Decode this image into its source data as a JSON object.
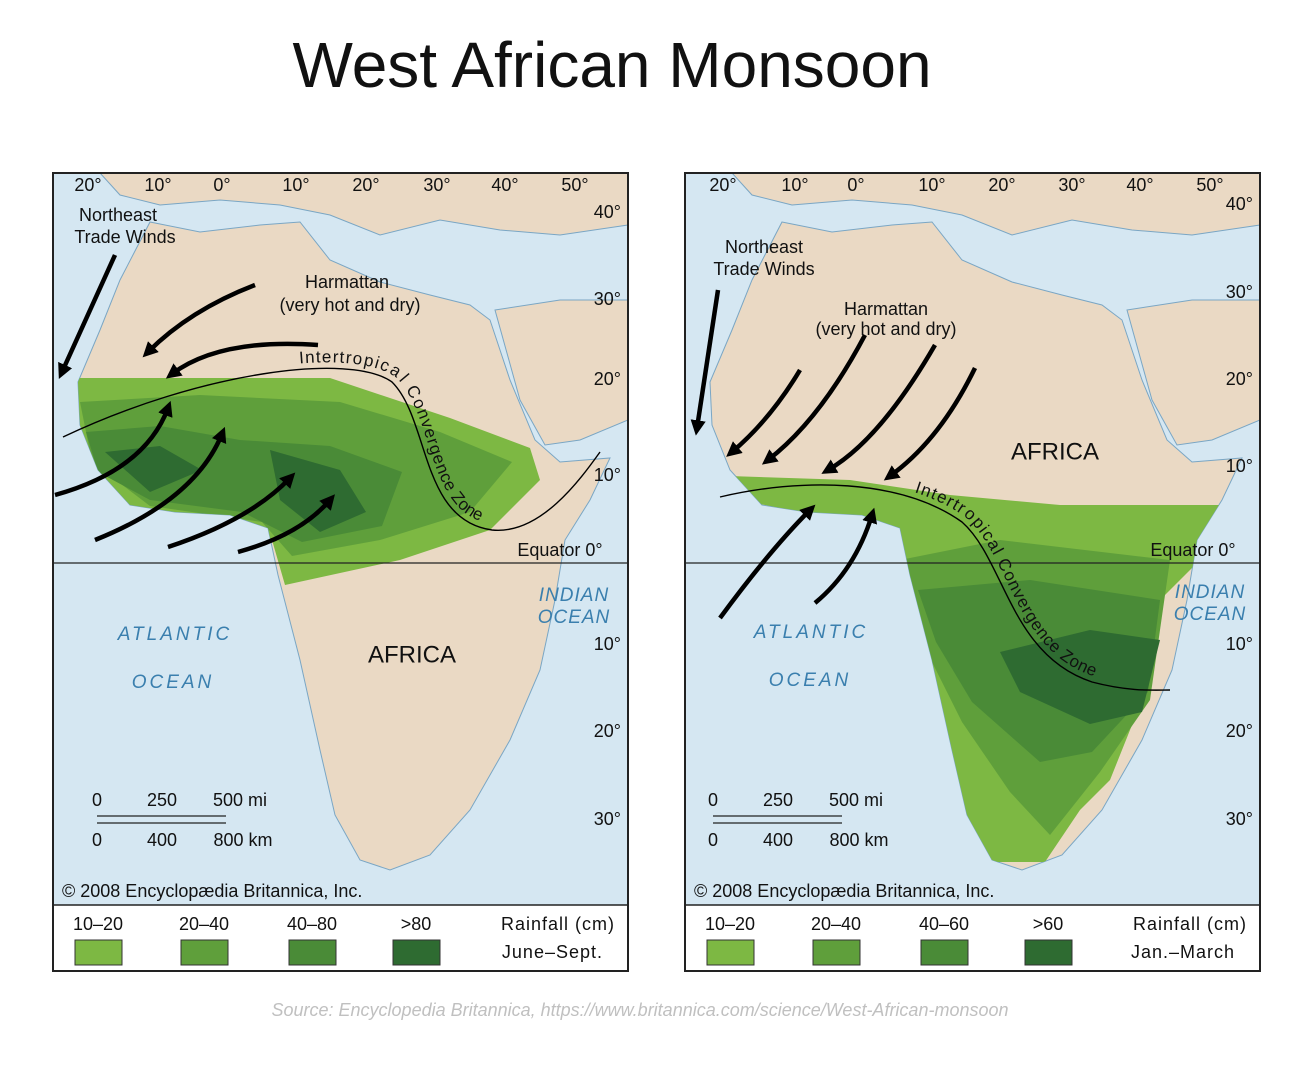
{
  "title": "West African Monsoon",
  "source": "Source: Encyclopedia Britannica, https://www.britannica.com/science/West-African-monsoon",
  "panels": [
    {
      "longitude_labels": [
        "20°",
        "10°",
        "0°",
        "10°",
        "20°",
        "30°",
        "40°",
        "50°"
      ],
      "latitude_labels": [
        "40°",
        "30°",
        "20°",
        "10°",
        "10°",
        "20°",
        "30°"
      ],
      "labels": {
        "trade_winds": [
          "Northeast",
          "Trade Winds"
        ],
        "harmattan": "Harmattan",
        "harmattan_note": "(very hot and dry)",
        "itcz": "Intertropical Convergence Zone",
        "equator": "Equator 0°",
        "atlantic": [
          "ATLANTIC",
          "OCEAN"
        ],
        "indian": [
          "INDIAN",
          "OCEAN"
        ],
        "continent": "AFRICA"
      },
      "scale": {
        "miles": [
          "0",
          "250",
          "500 mi"
        ],
        "km": [
          "0",
          "400",
          "800 km"
        ]
      },
      "copyright": "© 2008 Encyclopædia Britannica, Inc.",
      "legend": {
        "title": "Rainfall (cm)",
        "season": "June–Sept.",
        "items": [
          {
            "label": "10–20",
            "color": "#7db843"
          },
          {
            "label": "20–40",
            "color": "#5f9f3b"
          },
          {
            "label": "40–80",
            "color": "#4a8b37"
          },
          {
            "label": ">80",
            "color": "#2e6b31"
          }
        ]
      }
    },
    {
      "longitude_labels": [
        "20°",
        "10°",
        "0°",
        "10°",
        "20°",
        "30°",
        "40°",
        "50°"
      ],
      "latitude_labels": [
        "40°",
        "30°",
        "20°",
        "10°",
        "10°",
        "20°",
        "30°"
      ],
      "labels": {
        "trade_winds": [
          "Northeast",
          "Trade Winds"
        ],
        "harmattan": "Harmattan",
        "harmattan_note": "(very hot and dry)",
        "itcz": "Intertropical Convergence Zone",
        "equator": "Equator 0°",
        "atlantic": [
          "ATLANTIC",
          "OCEAN"
        ],
        "indian": [
          "INDIAN",
          "OCEAN"
        ],
        "continent": "AFRICA"
      },
      "scale": {
        "miles": [
          "0",
          "250",
          "500 mi"
        ],
        "km": [
          "0",
          "400",
          "800 km"
        ]
      },
      "copyright": "© 2008 Encyclopædia Britannica, Inc.",
      "legend": {
        "title": "Rainfall (cm)",
        "season": "Jan.–March",
        "items": [
          {
            "label": "10–20",
            "color": "#7db843"
          },
          {
            "label": "20–40",
            "color": "#5f9f3b"
          },
          {
            "label": "40–60",
            "color": "#4a8b37"
          },
          {
            "label": ">60",
            "color": "#2e6b31"
          }
        ]
      }
    }
  ]
}
